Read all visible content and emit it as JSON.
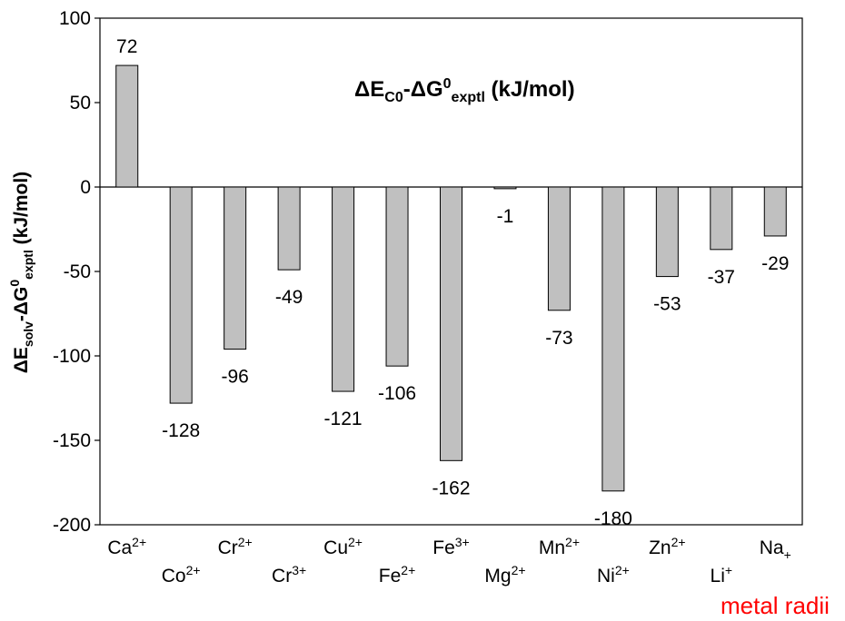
{
  "chart_data": {
    "type": "bar",
    "categories": [
      {
        "base": "Ca",
        "sup": "2+",
        "sub": ""
      },
      {
        "base": "Co",
        "sup": "2+",
        "sub": ""
      },
      {
        "base": "Cr",
        "sup": "2+",
        "sub": ""
      },
      {
        "base": "Cr",
        "sup": "3+",
        "sub": ""
      },
      {
        "base": "Cu",
        "sup": "2+",
        "sub": ""
      },
      {
        "base": "Fe",
        "sup": "2+",
        "sub": ""
      },
      {
        "base": "Fe",
        "sup": "3+",
        "sub": ""
      },
      {
        "base": "Mg",
        "sup": "2+",
        "sub": ""
      },
      {
        "base": "Mn",
        "sup": "2+",
        "sub": ""
      },
      {
        "base": "Ni",
        "sup": "2+",
        "sub": ""
      },
      {
        "base": "Zn",
        "sup": "2+",
        "sub": ""
      },
      {
        "base": "Li",
        "sup": "+",
        "sub": ""
      },
      {
        "base": "Na",
        "sup": "",
        "sub": "+"
      }
    ],
    "values": [
      72,
      -128,
      -96,
      -49,
      -121,
      -106,
      -162,
      -1,
      -73,
      -180,
      -53,
      -37,
      -29
    ],
    "data_labels": [
      "72",
      "-128",
      "-96",
      "-49",
      "-121",
      "-106",
      "-162",
      "-1",
      "-73",
      "-180",
      "-53",
      "-37",
      "-29"
    ],
    "ylim": [
      -200,
      100
    ],
    "yticks": [
      100,
      50,
      0,
      -50,
      -100,
      -150,
      -200
    ],
    "title": {
      "parts": [
        {
          "t": "ΔE",
          "s": "n"
        },
        {
          "t": "C0",
          "s": "sub"
        },
        {
          "t": "-ΔG",
          "s": "n"
        },
        {
          "t": "0",
          "s": "sup"
        },
        {
          "t": "exptl",
          "s": "sub"
        },
        {
          "t": " (kJ/mol)",
          "s": "n"
        }
      ]
    },
    "ylabel": {
      "parts": [
        {
          "t": "ΔE",
          "s": "n"
        },
        {
          "t": "solv",
          "s": "sub"
        },
        {
          "t": "-ΔG",
          "s": "n"
        },
        {
          "t": "0",
          "s": "sup"
        },
        {
          "t": "exptl",
          "s": "sub"
        },
        {
          "t": " (kJ/mol)",
          "s": "n"
        }
      ]
    },
    "bar_color": "#c0c0c0",
    "grid": false
  },
  "footnote": "metal radii",
  "colors": {
    "footnote": "#ff0000"
  }
}
